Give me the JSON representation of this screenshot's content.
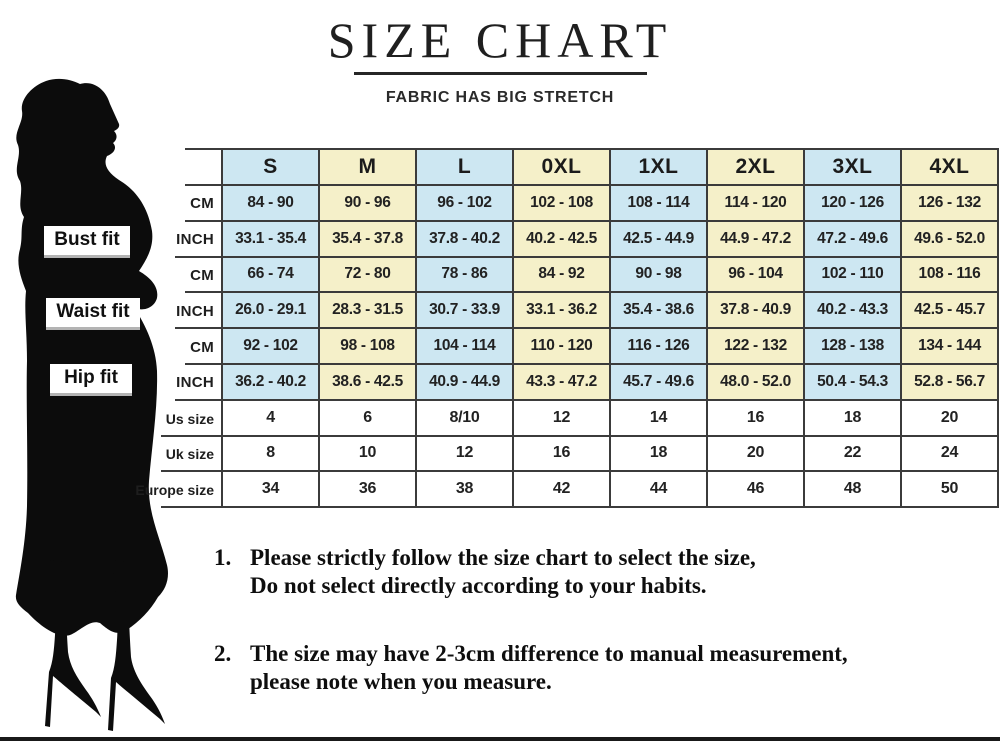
{
  "title": "SIZE CHART",
  "subtitle": "FABRIC HAS BIG STRETCH",
  "figure": {
    "icon": "woman-silhouette"
  },
  "fit_labels": {
    "bust": "Bust fit",
    "waist": "Waist fit",
    "hip": "Hip fit"
  },
  "table": {
    "size_headers": [
      "S",
      "M",
      "L",
      "0XL",
      "1XL",
      "2XL",
      "3XL",
      "4XL"
    ],
    "rows": [
      {
        "label": "CM",
        "group": "bust",
        "shaded": true,
        "values": [
          "84 - 90",
          "90 - 96",
          "96 - 102",
          "102 - 108",
          "108 - 114",
          "114 - 120",
          "120 - 126",
          "126 - 132"
        ]
      },
      {
        "label": "INCH",
        "group": "bust",
        "shaded": true,
        "values": [
          "33.1 - 35.4",
          "35.4 - 37.8",
          "37.8 - 40.2",
          "40.2 - 42.5",
          "42.5 - 44.9",
          "44.9 - 47.2",
          "47.2 - 49.6",
          "49.6 - 52.0"
        ]
      },
      {
        "label": "CM",
        "group": "waist",
        "shaded": true,
        "values": [
          "66 - 74",
          "72 - 80",
          "78 - 86",
          "84 - 92",
          "90 - 98",
          "96 - 104",
          "102 - 110",
          "108 - 116"
        ]
      },
      {
        "label": "INCH",
        "group": "waist",
        "shaded": true,
        "values": [
          "26.0 - 29.1",
          "28.3 - 31.5",
          "30.7 - 33.9",
          "33.1 - 36.2",
          "35.4 - 38.6",
          "37.8 - 40.9",
          "40.2 - 43.3",
          "42.5 - 45.7"
        ]
      },
      {
        "label": "CM",
        "group": "hip",
        "shaded": true,
        "values": [
          "92 - 102",
          "98 - 108",
          "104 - 114",
          "110 - 120",
          "116 - 126",
          "122 - 132",
          "128 - 138",
          "134 - 144"
        ]
      },
      {
        "label": "INCH",
        "group": "hip",
        "shaded": true,
        "values": [
          "36.2 - 40.2",
          "38.6 - 42.5",
          "40.9 - 44.9",
          "43.3 - 47.2",
          "45.7 - 49.6",
          "48.0 - 52.0",
          "50.4 - 54.3",
          "52.8 - 56.7"
        ]
      },
      {
        "label": "Us size",
        "group": "",
        "shaded": false,
        "values": [
          "4",
          "6",
          "8/10",
          "12",
          "14",
          "16",
          "18",
          "20"
        ]
      },
      {
        "label": "Uk size",
        "group": "",
        "shaded": false,
        "values": [
          "8",
          "10",
          "12",
          "16",
          "18",
          "20",
          "22",
          "24"
        ]
      },
      {
        "label": "Europe size",
        "group": "",
        "shaded": false,
        "values": [
          "34",
          "36",
          "38",
          "42",
          "44",
          "46",
          "48",
          "50"
        ]
      }
    ]
  },
  "notes": [
    {
      "number": "1.",
      "lines": [
        "Please strictly follow the size chart to select the size,",
        "Do not select directly according to your habits."
      ]
    },
    {
      "number": "2.",
      "lines": [
        "The size may have 2-3cm difference  to manual measurement,",
        "please note when you measure."
      ]
    }
  ],
  "colors": {
    "header_blue": "#cde7f2",
    "header_yellow": "#f5f0c9",
    "border": "#3b3b3b",
    "silhouette": "#0c0c0c",
    "underline_gray": "#b3b3b3"
  }
}
